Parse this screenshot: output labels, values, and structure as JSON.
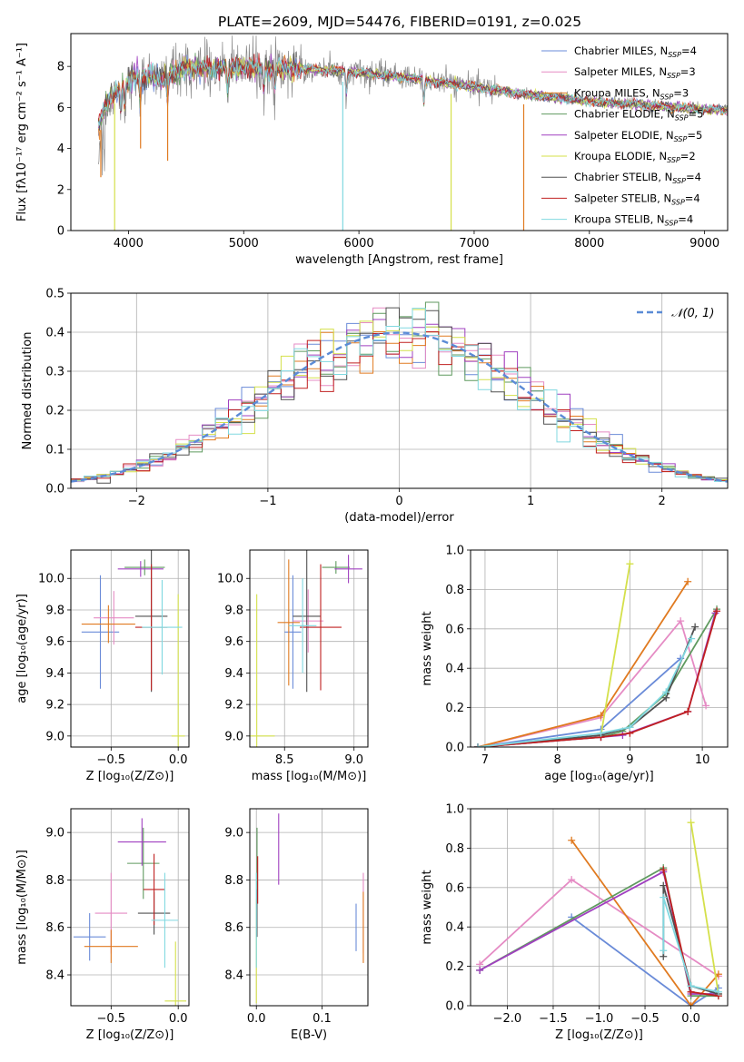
{
  "figure_title": "PLATE=2609, MJD=54476, FIBERID=0191, z=0.025",
  "colors": [
    "#6a8bd8",
    "#e58bc4",
    "#e07a20",
    "#5f9a5f",
    "#a040c0",
    "#d4e04a",
    "#505050",
    "#c02020",
    "#80d8e0"
  ],
  "chart_data": [
    {
      "type": "line",
      "panel": "spectrum",
      "xlabel": "wavelength [Angstrom, rest frame]",
      "ylabel": "Flux [fλ10⁻¹⁷ erg cm⁻² s⁻¹ A⁻¹]",
      "xlim": [
        3500,
        9200
      ],
      "ylim": [
        0,
        9.6
      ],
      "xticks": [
        4000,
        5000,
        6000,
        7000,
        8000,
        9000
      ],
      "yticks": [
        0,
        2,
        4,
        6,
        8
      ],
      "series_names": [
        "Chabrier MILES, N_SSP=4",
        "Salpeter MILES, N_SSP=3",
        "Kroupa MILES, N_SSP=3",
        "Chabrier ELODIE, N_SSP=5",
        "Salpeter ELODIE, N_SSP=5",
        "Kroupa ELODIE, N_SSP=2",
        "Chabrier STELIB, N_SSP=4",
        "Salpeter STELIB, N_SSP=4",
        "Kroupa STELIB, N_SSP=4"
      ],
      "legend_position": "top-right",
      "continuum": [
        [
          3740,
          5.0
        ],
        [
          3800,
          6.2
        ],
        [
          3900,
          6.8
        ],
        [
          4000,
          7.3
        ],
        [
          4100,
          7.5
        ],
        [
          4300,
          7.5
        ],
        [
          4500,
          7.9
        ],
        [
          5000,
          7.9
        ],
        [
          5500,
          7.9
        ],
        [
          6000,
          7.7
        ],
        [
          6500,
          7.4
        ],
        [
          7000,
          7.0
        ],
        [
          7500,
          6.6
        ],
        [
          8000,
          6.3
        ],
        [
          8500,
          6.1
        ],
        [
          9000,
          5.9
        ],
        [
          9200,
          5.85
        ]
      ],
      "model_drops": [
        {
          "x": 3760,
          "y": 2.6,
          "series": 2
        },
        {
          "x": 3880,
          "y": 0.0,
          "series": 5
        },
        {
          "x": 4105,
          "y": 4.0,
          "series": 2
        },
        {
          "x": 4340,
          "y": 3.4,
          "series": 2
        },
        {
          "x": 5860,
          "y": 0.0,
          "series": 8
        },
        {
          "x": 6800,
          "y": 0.0,
          "series": 5
        },
        {
          "x": 7430,
          "y": 0.0,
          "series": 2
        }
      ]
    },
    {
      "type": "histogram",
      "panel": "residuals",
      "xlabel": "(data-model)/error",
      "ylabel": "Normed distribution",
      "xlim": [
        -2.5,
        2.5
      ],
      "ylim": [
        0,
        0.5
      ],
      "xticks": [
        -2,
        -1,
        0,
        1,
        2
      ],
      "yticks": [
        0.0,
        0.1,
        0.2,
        0.3,
        0.4,
        0.5
      ],
      "legend": "𝒩(0, 1)",
      "bin_width": 0.1,
      "reference_curve": "gaussian(0,1)"
    },
    {
      "type": "errorbar",
      "panel": "age-vs-Z",
      "xlabel": "Z [log₁₀(Z/Z⊙)]",
      "ylabel": "age  [log₁₀(age/yr)]",
      "xlim": [
        -0.8,
        0.08
      ],
      "ylim": [
        8.93,
        10.18
      ],
      "xticks": [
        -0.5,
        0.0
      ],
      "yticks": [
        9.0,
        9.2,
        9.4,
        9.6,
        9.8,
        10.0
      ],
      "points": [
        {
          "x": -0.58,
          "y": 9.66,
          "xerr": 0.14,
          "yerr": 0.36,
          "series": 0
        },
        {
          "x": -0.48,
          "y": 9.75,
          "xerr": 0.15,
          "yerr": 0.17,
          "series": 1
        },
        {
          "x": -0.52,
          "y": 9.71,
          "xerr": 0.2,
          "yerr": 0.12,
          "series": 2
        },
        {
          "x": -0.25,
          "y": 10.07,
          "xerr": 0.15,
          "yerr": 0.05,
          "series": 3
        },
        {
          "x": -0.28,
          "y": 10.06,
          "xerr": 0.17,
          "yerr": 0.05,
          "series": 4
        },
        {
          "x": 0.0,
          "y": 9.0,
          "xerr": 0.05,
          "yerr": 0.9,
          "series": 5
        },
        {
          "x": -0.2,
          "y": 9.76,
          "xerr": 0.12,
          "yerr": 0.48,
          "series": 6
        },
        {
          "x": -0.2,
          "y": 9.69,
          "xerr": 0.12,
          "yerr": 0.4,
          "series": 7
        },
        {
          "x": -0.12,
          "y": 9.69,
          "xerr": 0.15,
          "yerr": 0.3,
          "series": 8
        }
      ]
    },
    {
      "type": "errorbar",
      "panel": "age-vs-mass",
      "xlabel": "mass [log₁₀(M/M⊙)]",
      "xlim": [
        8.25,
        9.1
      ],
      "ylim": [
        8.93,
        10.18
      ],
      "xticks": [
        8.5,
        9.0
      ],
      "yticks": [
        9.0,
        9.2,
        9.4,
        9.6,
        9.8,
        10.0
      ],
      "points": [
        {
          "x": 8.56,
          "y": 9.66,
          "xerr": 0.06,
          "yerr": 0.36,
          "series": 0
        },
        {
          "x": 8.67,
          "y": 9.73,
          "xerr": 0.11,
          "yerr": 0.2,
          "series": 1
        },
        {
          "x": 8.53,
          "y": 9.72,
          "xerr": 0.08,
          "yerr": 0.4,
          "series": 2
        },
        {
          "x": 8.87,
          "y": 10.07,
          "xerr": 0.1,
          "yerr": 0.04,
          "series": 3
        },
        {
          "x": 8.96,
          "y": 10.06,
          "xerr": 0.1,
          "yerr": 0.09,
          "series": 4
        },
        {
          "x": 8.3,
          "y": 9.0,
          "xerr": 0.13,
          "yerr": 0.9,
          "series": 5
        },
        {
          "x": 8.66,
          "y": 9.76,
          "xerr": 0.1,
          "yerr": 0.48,
          "series": 6
        },
        {
          "x": 8.76,
          "y": 9.69,
          "xerr": 0.15,
          "yerr": 0.4,
          "series": 7
        },
        {
          "x": 8.63,
          "y": 9.7,
          "xerr": 0.1,
          "yerr": 0.3,
          "series": 8
        }
      ]
    },
    {
      "type": "line",
      "panel": "weight-vs-age",
      "xlabel": "age  [log₁₀(age/yr)]",
      "ylabel": "mass weight",
      "xlim": [
        6.8,
        10.35
      ],
      "ylim": [
        0,
        1.0
      ],
      "xticks": [
        7,
        8,
        9,
        10
      ],
      "yticks": [
        0.0,
        0.2,
        0.4,
        0.6,
        0.8,
        1.0
      ],
      "series": [
        {
          "series": 0,
          "x": [
            6.9,
            8.6,
            9.7
          ],
          "y": [
            0.0,
            0.09,
            0.45
          ]
        },
        {
          "series": 1,
          "x": [
            6.9,
            8.6,
            9.7,
            10.05
          ],
          "y": [
            0.0,
            0.15,
            0.64,
            0.21
          ]
        },
        {
          "series": 2,
          "x": [
            6.9,
            8.6,
            9.8
          ],
          "y": [
            0.0,
            0.16,
            0.84
          ]
        },
        {
          "series": 3,
          "x": [
            6.9,
            8.6,
            8.9,
            9.5,
            10.2
          ],
          "y": [
            0.0,
            0.05,
            0.08,
            0.27,
            0.7
          ]
        },
        {
          "series": 4,
          "x": [
            6.9,
            8.6,
            8.9,
            9.8,
            10.18
          ],
          "y": [
            0.0,
            0.05,
            0.06,
            0.18,
            0.68
          ]
        },
        {
          "series": 5,
          "x": [
            8.6,
            9.0
          ],
          "y": [
            0.06,
            0.93
          ]
        },
        {
          "series": 6,
          "x": [
            6.9,
            8.6,
            9.0,
            9.5,
            9.9
          ],
          "y": [
            0.0,
            0.06,
            0.1,
            0.25,
            0.61
          ]
        },
        {
          "series": 7,
          "x": [
            6.9,
            8.6,
            9.0,
            9.8,
            10.2
          ],
          "y": [
            0.0,
            0.05,
            0.07,
            0.18,
            0.69
          ]
        },
        {
          "series": 8,
          "x": [
            6.9,
            8.6,
            9.0,
            9.5,
            9.85
          ],
          "y": [
            0.0,
            0.07,
            0.1,
            0.28,
            0.55
          ]
        }
      ]
    },
    {
      "type": "errorbar",
      "panel": "mass-vs-Z",
      "xlabel": "Z [log₁₀(Z/Z⊙)]",
      "ylabel": "mass [log₁₀(M/M⊙)]",
      "xlim": [
        -0.8,
        0.08
      ],
      "ylim": [
        8.27,
        9.1
      ],
      "xticks": [
        -0.5,
        0.0
      ],
      "yticks": [
        8.4,
        8.6,
        8.8,
        9.0
      ],
      "points": [
        {
          "x": -0.66,
          "y": 8.56,
          "xerr": 0.12,
          "yerr": 0.1,
          "series": 0
        },
        {
          "x": -0.5,
          "y": 8.66,
          "xerr": 0.12,
          "yerr": 0.17,
          "series": 1
        },
        {
          "x": -0.5,
          "y": 8.52,
          "xerr": 0.2,
          "yerr": 0.07,
          "series": 2
        },
        {
          "x": -0.26,
          "y": 8.87,
          "xerr": 0.12,
          "yerr": 0.15,
          "series": 3
        },
        {
          "x": -0.27,
          "y": 8.96,
          "xerr": 0.18,
          "yerr": 0.1,
          "series": 4
        },
        {
          "x": -0.02,
          "y": 8.29,
          "xerr": 0.08,
          "yerr": 0.25,
          "series": 5
        },
        {
          "x": -0.18,
          "y": 8.66,
          "xerr": 0.12,
          "yerr": 0.09,
          "series": 6
        },
        {
          "x": -0.18,
          "y": 8.76,
          "xerr": 0.08,
          "yerr": 0.15,
          "series": 7
        },
        {
          "x": -0.1,
          "y": 8.63,
          "xerr": 0.1,
          "yerr": 0.2,
          "series": 8
        }
      ]
    },
    {
      "type": "errorbar",
      "panel": "mass-vs-EBV",
      "xlabel": "E(B-V)",
      "xlim": [
        -0.01,
        0.17
      ],
      "ylim": [
        8.27,
        9.1
      ],
      "xticks": [
        0.0,
        0.1
      ],
      "yticks": [
        8.4,
        8.6,
        8.8,
        9.0
      ],
      "points": [
        {
          "x": 0.152,
          "y": 8.6,
          "yerr": 0.1,
          "series": 0
        },
        {
          "x": 0.163,
          "y": 8.66,
          "yerr": 0.17,
          "series": 1
        },
        {
          "x": 0.163,
          "y": 8.6,
          "yerr": 0.15,
          "series": 2
        },
        {
          "x": 0.001,
          "y": 8.87,
          "yerr": 0.15,
          "series": 3
        },
        {
          "x": 0.034,
          "y": 8.93,
          "yerr": 0.15,
          "series": 4
        },
        {
          "x": 0.0,
          "y": 8.5,
          "yerr": 0.22,
          "series": 5
        },
        {
          "x": 0.001,
          "y": 8.66,
          "yerr": 0.1,
          "series": 6
        },
        {
          "x": 0.002,
          "y": 8.8,
          "yerr": 0.1,
          "series": 7
        },
        {
          "x": 0.0,
          "y": 8.63,
          "yerr": 0.2,
          "series": 8
        }
      ]
    },
    {
      "type": "line",
      "panel": "weight-vs-Z",
      "xlabel": "Z [log₁₀(Z/Z⊙)]",
      "ylabel": "mass weight",
      "xlim": [
        -2.4,
        0.4
      ],
      "ylim": [
        0,
        1.0
      ],
      "xticks": [
        -2.0,
        -1.5,
        -1.0,
        -0.5,
        0.0
      ],
      "yticks": [
        0.0,
        0.2,
        0.4,
        0.6,
        0.8,
        1.0
      ],
      "series": [
        {
          "series": 0,
          "x": [
            -1.3,
            0.0,
            0.3
          ],
          "y": [
            0.45,
            0.0,
            0.09
          ]
        },
        {
          "series": 1,
          "x": [
            -2.3,
            -1.3,
            0.3
          ],
          "y": [
            0.21,
            0.64,
            0.15
          ]
        },
        {
          "series": 2,
          "x": [
            -1.3,
            0.0,
            0.3
          ],
          "y": [
            0.84,
            0.0,
            0.16
          ]
        },
        {
          "series": 3,
          "x": [
            -2.3,
            -0.3,
            0.0,
            0.3
          ],
          "y": [
            0.18,
            0.7,
            0.05,
            0.05
          ]
        },
        {
          "series": 4,
          "x": [
            -2.3,
            -0.3,
            0.0,
            0.3
          ],
          "y": [
            0.18,
            0.68,
            0.06,
            0.06
          ]
        },
        {
          "series": 5,
          "x": [
            0.0,
            0.3
          ],
          "y": [
            0.93,
            0.06
          ]
        },
        {
          "series": 6,
          "x": [
            -0.3,
            -0.3,
            0.0,
            0.3
          ],
          "y": [
            0.25,
            0.61,
            0.1,
            0.06
          ]
        },
        {
          "series": 7,
          "x": [
            -0.3,
            0.0,
            0.3
          ],
          "y": [
            0.69,
            0.07,
            0.05
          ]
        },
        {
          "series": 8,
          "x": [
            -0.3,
            -0.3,
            0.0,
            0.3
          ],
          "y": [
            0.28,
            0.55,
            0.1,
            0.07
          ]
        }
      ]
    }
  ]
}
